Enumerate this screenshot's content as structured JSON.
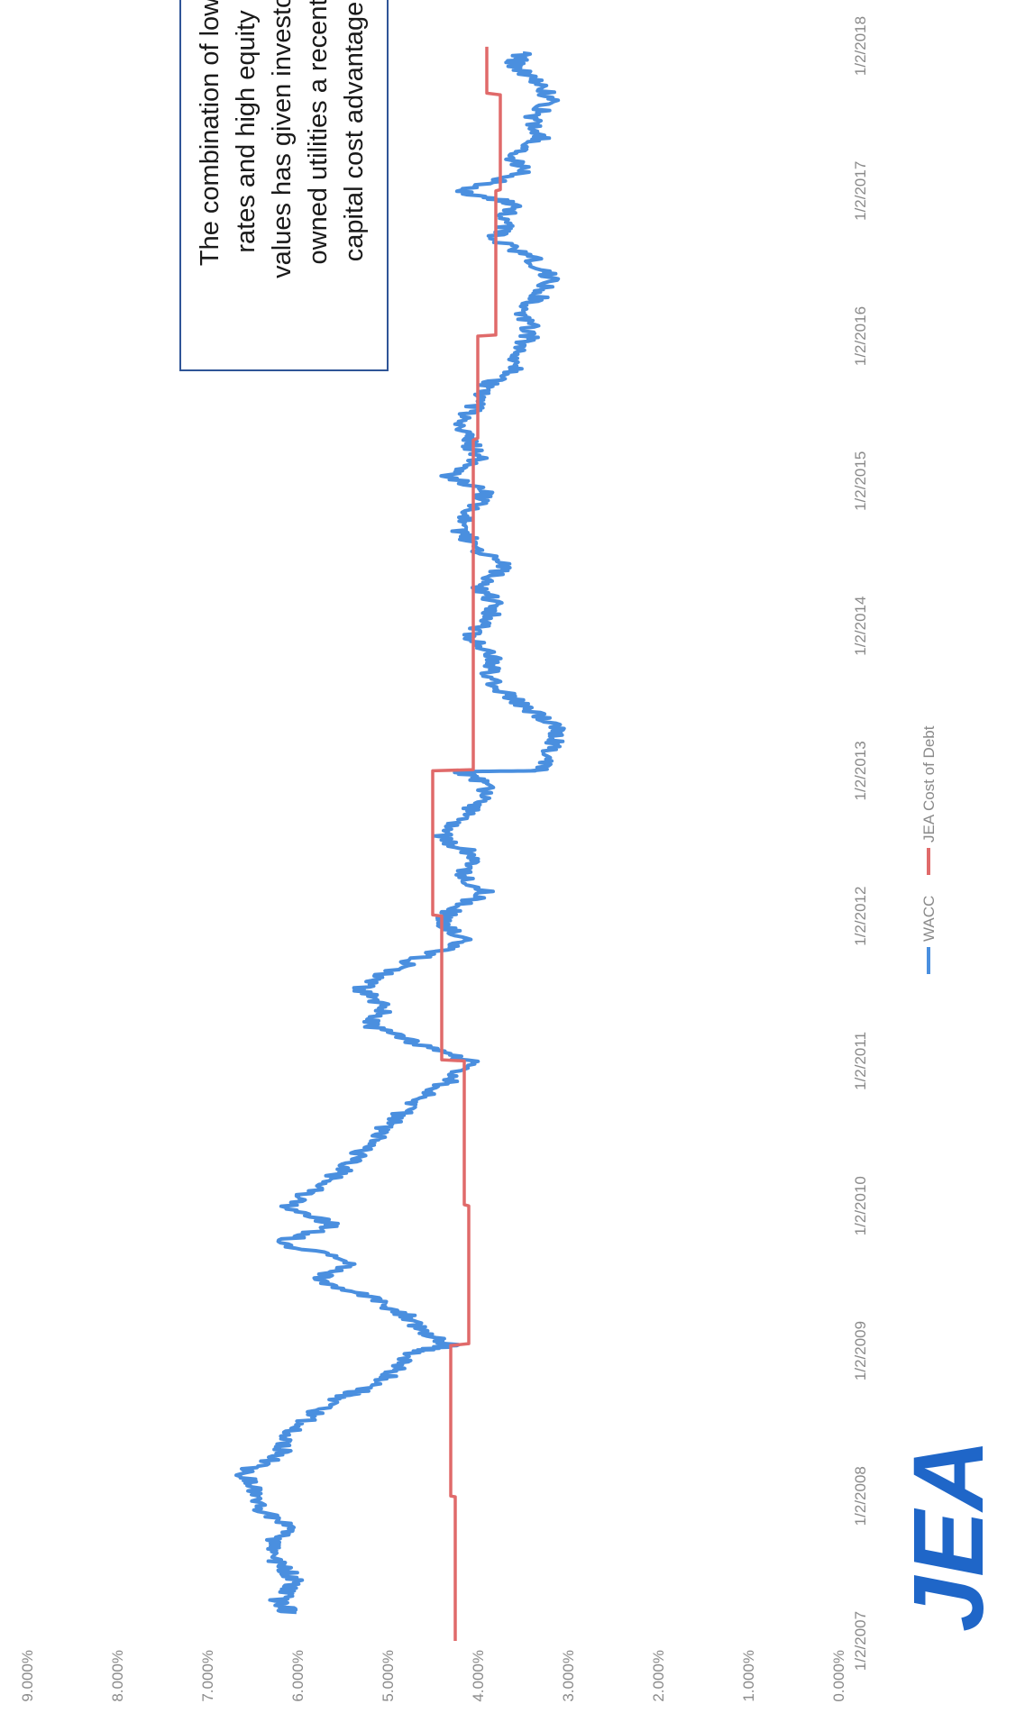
{
  "logo": {
    "text": "JEA"
  },
  "annotation": {
    "lines": [
      "The combination of low",
      "rates and high equity",
      "values has given investor",
      "owned utilities a recent",
      "capital cost advantage"
    ]
  },
  "chart_data": {
    "type": "line",
    "title": "",
    "xlabel": "",
    "ylabel": "",
    "ylim": [
      0,
      9
    ],
    "xlim": [
      "1/2/2007",
      "1/2/2018"
    ],
    "yticks": [
      "0.000%",
      "1.000%",
      "2.000%",
      "3.000%",
      "4.000%",
      "5.000%",
      "6.000%",
      "7.000%",
      "8.000%",
      "9.000%"
    ],
    "xticks": [
      "1/2/2007",
      "1/2/2008",
      "1/2/2009",
      "1/2/2010",
      "1/2/2011",
      "1/2/2012",
      "1/2/2013",
      "1/2/2014",
      "1/2/2015",
      "1/2/2016",
      "1/2/2017",
      "1/2/2018"
    ],
    "legend_position": "bottom",
    "grid": false,
    "series": [
      {
        "name": "WACC",
        "color": "#4a8fdf",
        "x": [
          "2007-03-15",
          "2007-04-15",
          "2007-06-01",
          "2007-07-15",
          "2007-09-01",
          "2007-10-15",
          "2007-12-01",
          "2008-01-15",
          "2008-03-01",
          "2008-04-15",
          "2008-06-01",
          "2008-07-15",
          "2008-09-01",
          "2008-10-01",
          "2008-11-15",
          "2009-01-01",
          "2009-01-15",
          "2009-02-15",
          "2009-04-01",
          "2009-05-15",
          "2009-07-01",
          "2009-08-15",
          "2009-10-01",
          "2009-11-15",
          "2010-01-01",
          "2010-02-15",
          "2010-04-01",
          "2010-05-15",
          "2010-07-01",
          "2010-08-15",
          "2010-10-01",
          "2010-11-15",
          "2011-01-01",
          "2011-02-15",
          "2011-04-01",
          "2011-05-15",
          "2011-07-01",
          "2011-08-01",
          "2011-09-15",
          "2011-11-01",
          "2011-12-15",
          "2012-01-15",
          "2012-03-01",
          "2012-04-15",
          "2012-06-01",
          "2012-07-15",
          "2012-09-01",
          "2012-10-15",
          "2012-12-01",
          "2012-12-31",
          "2013-01-02",
          "2013-03-01",
          "2013-04-15",
          "2013-06-01",
          "2013-07-15",
          "2013-09-01",
          "2013-10-15",
          "2013-12-01",
          "2014-01-15",
          "2014-03-01",
          "2014-04-15",
          "2014-06-01",
          "2014-07-15",
          "2014-09-01",
          "2014-10-15",
          "2014-12-01",
          "2015-01-15",
          "2015-03-01",
          "2015-04-15",
          "2015-06-01",
          "2015-07-15",
          "2015-09-01",
          "2015-10-15",
          "2015-12-01",
          "2016-01-15",
          "2016-03-01",
          "2016-04-15",
          "2016-06-01",
          "2016-07-15",
          "2016-09-01",
          "2016-10-15",
          "2016-12-01",
          "2017-01-01",
          "2017-02-15",
          "2017-04-01",
          "2017-05-15",
          "2017-07-01",
          "2017-08-15",
          "2017-10-01",
          "2017-11-15",
          "2017-12-15"
        ],
        "y": [
          6.1,
          6.2,
          6.0,
          6.2,
          6.3,
          6.1,
          6.4,
          6.5,
          6.6,
          6.2,
          6.1,
          5.9,
          5.6,
          5.2,
          4.9,
          4.7,
          4.3,
          4.6,
          4.8,
          5.2,
          5.8,
          5.4,
          6.2,
          5.6,
          6.1,
          5.8,
          5.5,
          5.3,
          5.1,
          4.9,
          4.6,
          4.3,
          4.1,
          4.7,
          5.2,
          5.0,
          5.3,
          5.1,
          4.7,
          4.1,
          4.4,
          4.3,
          3.9,
          4.2,
          4.0,
          4.4,
          4.2,
          4.0,
          3.9,
          4.2,
          3.3,
          3.2,
          3.1,
          3.4,
          3.7,
          3.9,
          3.8,
          4.1,
          3.9,
          3.8,
          4.0,
          3.7,
          4.0,
          4.2,
          4.1,
          3.9,
          4.3,
          4.0,
          4.1,
          4.2,
          4.0,
          3.9,
          3.6,
          3.5,
          3.4,
          3.5,
          3.3,
          3.2,
          3.4,
          3.8,
          3.7,
          3.6,
          4.2,
          3.5,
          3.6,
          3.3,
          3.4,
          3.2,
          3.3,
          3.6,
          3.5
        ]
      },
      {
        "name": "JEA Cost of Debt",
        "color": "#e06a6a",
        "x": [
          "2007-01-02",
          "2007-12-31",
          "2008-01-02",
          "2009-01-15",
          "2009-01-20",
          "2010-01-02",
          "2010-01-05",
          "2011-01-02",
          "2011-01-05",
          "2012-01-02",
          "2012-01-05",
          "2013-01-02",
          "2013-01-05",
          "2015-04-15",
          "2015-04-20",
          "2016-01-02",
          "2016-01-05",
          "2017-01-02",
          "2017-01-05",
          "2017-09-01",
          "2017-09-05",
          "2017-12-31"
        ],
        "y": [
          4.25,
          4.25,
          4.3,
          4.3,
          4.1,
          4.1,
          4.15,
          4.15,
          4.4,
          4.4,
          4.5,
          4.5,
          4.05,
          4.05,
          4.0,
          4.0,
          3.8,
          3.8,
          3.75,
          3.75,
          3.9,
          3.9
        ]
      }
    ]
  }
}
